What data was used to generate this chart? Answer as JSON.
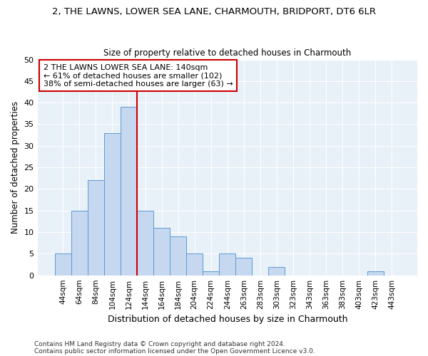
{
  "title_line1": "2, THE LAWNS, LOWER SEA LANE, CHARMOUTH, BRIDPORT, DT6 6LR",
  "title_line2": "Size of property relative to detached houses in Charmouth",
  "xlabel": "Distribution of detached houses by size in Charmouth",
  "ylabel": "Number of detached properties",
  "bar_labels": [
    "44sqm",
    "64sqm",
    "84sqm",
    "104sqm",
    "124sqm",
    "144sqm",
    "164sqm",
    "184sqm",
    "204sqm",
    "224sqm",
    "244sqm",
    "263sqm",
    "283sqm",
    "303sqm",
    "323sqm",
    "343sqm",
    "363sqm",
    "383sqm",
    "403sqm",
    "423sqm",
    "443sqm"
  ],
  "bar_heights": [
    5,
    15,
    22,
    33,
    39,
    15,
    11,
    9,
    5,
    1,
    5,
    4,
    0,
    2,
    0,
    0,
    0,
    0,
    0,
    1,
    0
  ],
  "bar_color": "#c5d8f0",
  "bar_edge_color": "#5b9bd5",
  "vline_index": 5,
  "property_line_label": "2 THE LAWNS LOWER SEA LANE: 140sqm",
  "annotation_line2": "← 61% of detached houses are smaller (102)",
  "annotation_line3": "38% of semi-detached houses are larger (63) →",
  "annotation_box_color": "#ffffff",
  "annotation_box_edge": "#cc0000",
  "vline_color": "#cc0000",
  "ylim": [
    0,
    50
  ],
  "yticks": [
    0,
    5,
    10,
    15,
    20,
    25,
    30,
    35,
    40,
    45,
    50
  ],
  "background_color": "#ffffff",
  "plot_bg_color": "#e8f0f8",
  "grid_color": "#ffffff",
  "footer_line1": "Contains HM Land Registry data © Crown copyright and database right 2024.",
  "footer_line2": "Contains public sector information licensed under the Open Government Licence v3.0."
}
